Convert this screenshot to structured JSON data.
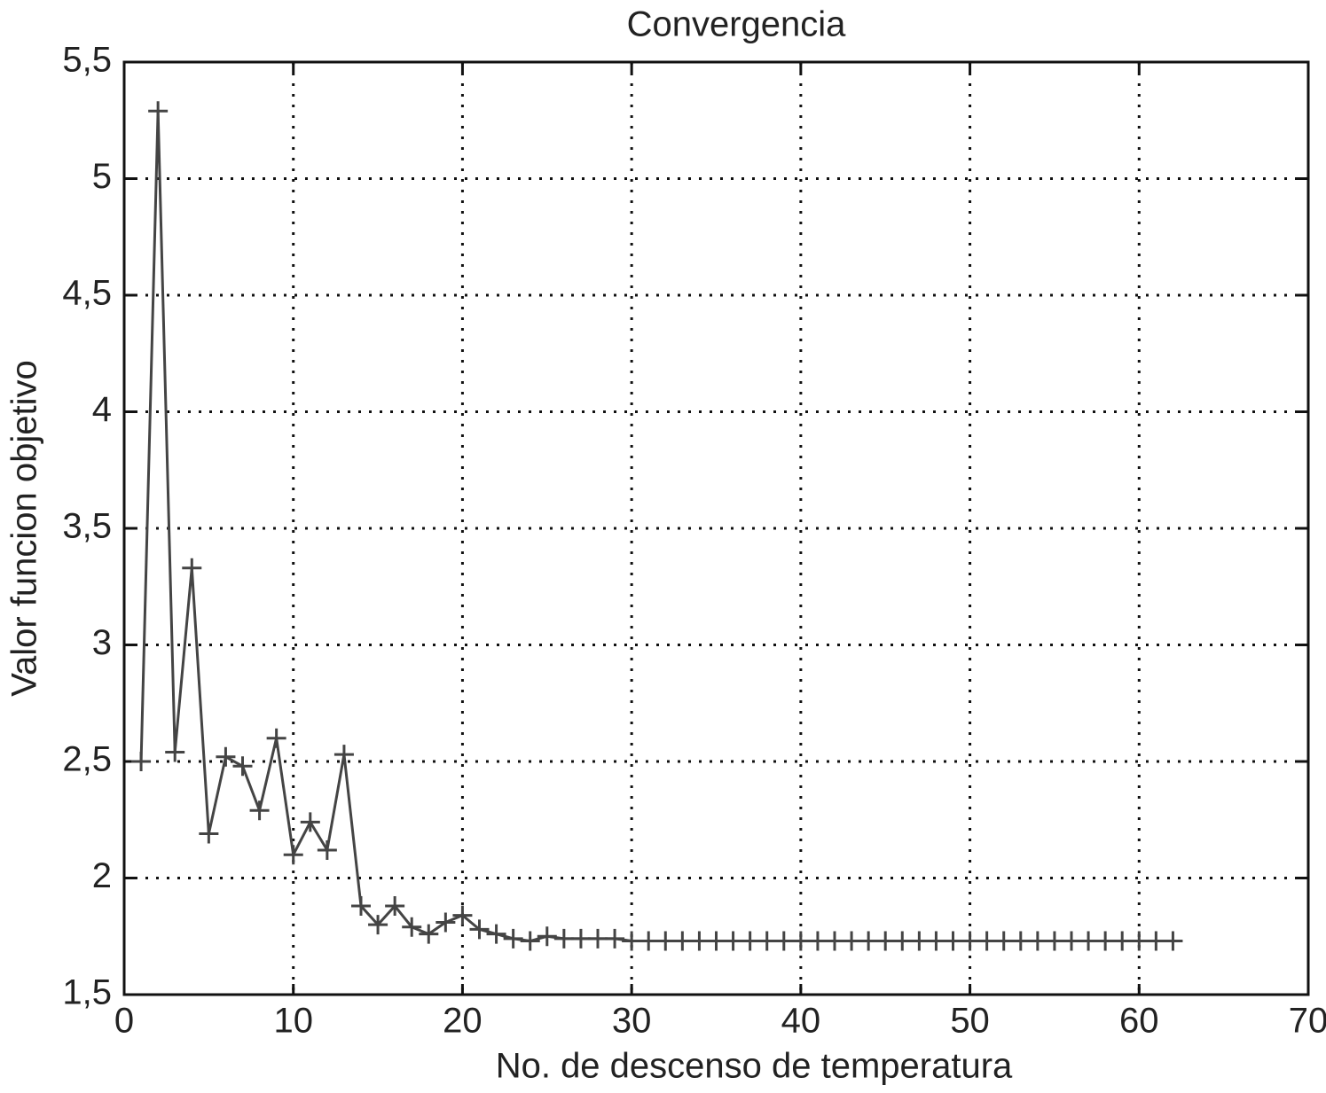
{
  "chart_data": {
    "type": "line",
    "title": "Convergencia",
    "xlabel": "No. de descenso de temperatura",
    "ylabel": "Valor funcion objetivo",
    "x": [
      1,
      2,
      3,
      4,
      5,
      6,
      7,
      8,
      9,
      10,
      11,
      12,
      13,
      14,
      15,
      16,
      17,
      18,
      19,
      20,
      21,
      22,
      23,
      24,
      25,
      26,
      27,
      28,
      29,
      30,
      31,
      32,
      33,
      34,
      35,
      36,
      37,
      38,
      39,
      40,
      41,
      42,
      43,
      44,
      45,
      46,
      47,
      48,
      49,
      50,
      51,
      52,
      53,
      54,
      55,
      56,
      57,
      58,
      59,
      60,
      61,
      62
    ],
    "series": [
      {
        "color": "#444444",
        "marker": "+",
        "values": [
          2.5,
          5.29,
          2.54,
          3.33,
          2.19,
          2.52,
          2.48,
          2.29,
          2.6,
          2.1,
          2.24,
          2.12,
          2.53,
          1.88,
          1.8,
          1.88,
          1.79,
          1.76,
          1.81,
          1.84,
          1.78,
          1.76,
          1.74,
          1.73,
          1.75,
          1.74,
          1.74,
          1.74,
          1.74,
          1.73,
          1.73,
          1.73,
          1.73,
          1.73,
          1.73,
          1.73,
          1.73,
          1.73,
          1.73,
          1.73,
          1.73,
          1.73,
          1.73,
          1.73,
          1.73,
          1.73,
          1.73,
          1.73,
          1.73,
          1.73,
          1.73,
          1.73,
          1.73,
          1.73,
          1.73,
          1.73,
          1.73,
          1.73,
          1.73,
          1.73,
          1.73,
          1.73
        ]
      }
    ],
    "xlim": [
      0,
      70
    ],
    "xticks": [
      0,
      10,
      20,
      30,
      40,
      50,
      60,
      70
    ],
    "ylim": [
      1.5,
      5.5
    ],
    "yticks": [
      {
        "value": 1.5,
        "label": "1,5"
      },
      2,
      {
        "value": 2.5,
        "label": "2,5"
      },
      3,
      {
        "value": 3.5,
        "label": "3,5"
      },
      4,
      {
        "value": 4.5,
        "label": "4,5"
      },
      5,
      {
        "value": 5.5,
        "label": "5,5"
      }
    ],
    "grid": true
  }
}
